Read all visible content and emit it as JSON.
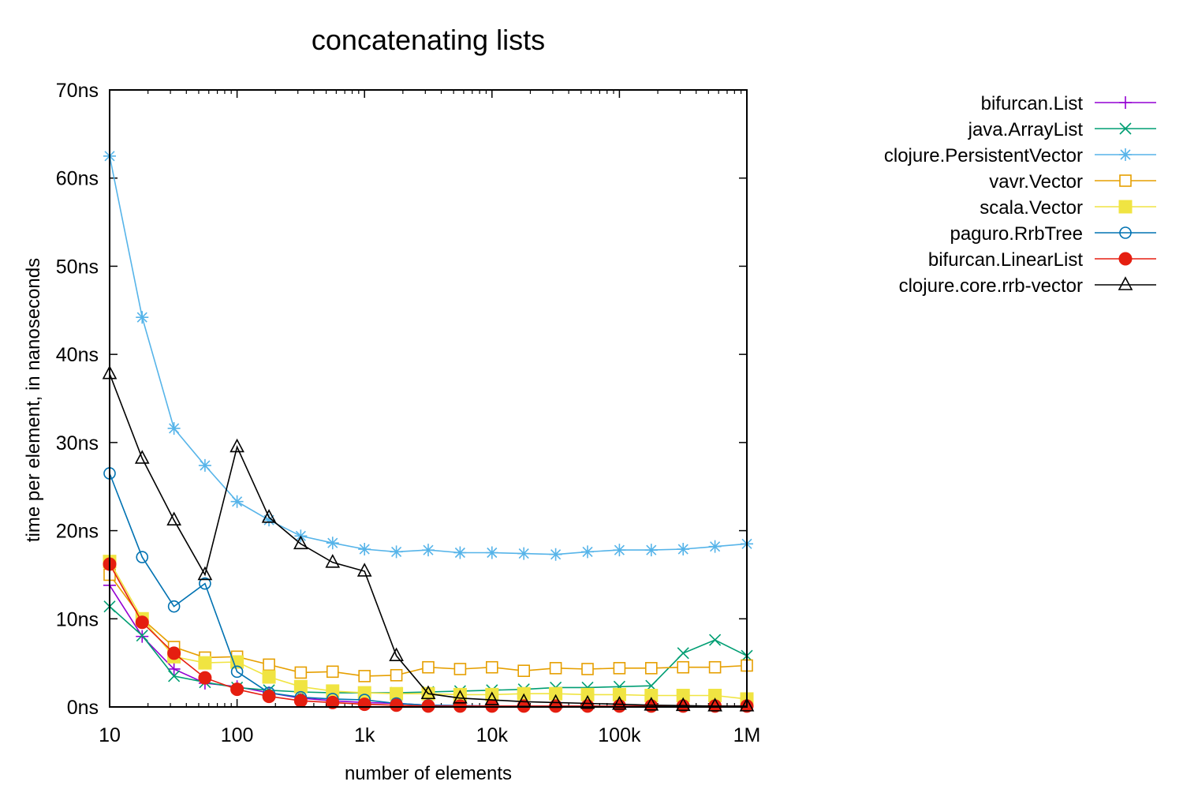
{
  "chart_data": {
    "type": "line",
    "title": "concatenating lists",
    "xlabel": "number of elements",
    "ylabel": "time per element, in nanoseconds",
    "xscale": "log",
    "xlim": [
      10,
      1000000
    ],
    "ylim": [
      0,
      70
    ],
    "grid": false,
    "legend_position": "top-right, outside plot",
    "x_ticks": [
      {
        "value": 10,
        "label": "10"
      },
      {
        "value": 100,
        "label": "100"
      },
      {
        "value": 1000,
        "label": "1k"
      },
      {
        "value": 10000,
        "label": "10k"
      },
      {
        "value": 100000,
        "label": "100k"
      },
      {
        "value": 1000000,
        "label": "1M"
      }
    ],
    "y_ticks": [
      {
        "value": 0,
        "label": "0ns"
      },
      {
        "value": 10,
        "label": "10ns"
      },
      {
        "value": 20,
        "label": "20ns"
      },
      {
        "value": 30,
        "label": "30ns"
      },
      {
        "value": 40,
        "label": "40ns"
      },
      {
        "value": 50,
        "label": "50ns"
      },
      {
        "value": 60,
        "label": "60ns"
      },
      {
        "value": 70,
        "label": "70ns"
      }
    ],
    "x": [
      10,
      18,
      32,
      56,
      100,
      178,
      316,
      562,
      1000,
      1778,
      3162,
      5623,
      10000,
      17783,
      31623,
      56234,
      100000,
      177828,
      316228,
      562341,
      1000000
    ],
    "series": [
      {
        "name": "bifurcan.List",
        "color": "#9400d3",
        "marker": "plus",
        "values": [
          13.8,
          8.0,
          4.3,
          2.7,
          2.3,
          1.6,
          1.0,
          0.7,
          0.5,
          0.4,
          0.2,
          0.15,
          0.1,
          0.1,
          0.1,
          0.1,
          0.1,
          0.1,
          0.1,
          0.1,
          0.1
        ]
      },
      {
        "name": "java.ArrayList",
        "color": "#009e73",
        "marker": "x",
        "values": [
          11.4,
          8.1,
          3.5,
          2.8,
          2.2,
          1.9,
          1.7,
          1.6,
          1.6,
          1.6,
          1.7,
          1.8,
          1.9,
          2.0,
          2.2,
          2.2,
          2.3,
          2.4,
          6.1,
          7.6,
          5.8
        ]
      },
      {
        "name": "clojure.PersistentVector",
        "color": "#56b4e9",
        "marker": "star",
        "values": [
          62.5,
          44.2,
          31.6,
          27.4,
          23.3,
          21.2,
          19.4,
          18.6,
          17.9,
          17.6,
          17.8,
          17.5,
          17.5,
          17.4,
          17.3,
          17.6,
          17.8,
          17.8,
          17.9,
          18.2,
          18.5
        ]
      },
      {
        "name": "vavr.Vector",
        "color": "#e69f00",
        "marker": "open-square",
        "values": [
          15.0,
          10.0,
          6.8,
          5.6,
          5.7,
          4.8,
          3.9,
          4.0,
          3.5,
          3.6,
          4.5,
          4.3,
          4.5,
          4.1,
          4.4,
          4.3,
          4.4,
          4.4,
          4.5,
          4.5,
          4.7
        ]
      },
      {
        "name": "scala.Vector",
        "color": "#f0e442",
        "marker": "filled-square",
        "values": [
          16.5,
          10.0,
          5.7,
          5.0,
          5.1,
          3.4,
          2.3,
          1.8,
          1.6,
          1.5,
          1.5,
          1.4,
          1.4,
          1.5,
          1.5,
          1.4,
          1.4,
          1.3,
          1.3,
          1.3,
          0.9
        ]
      },
      {
        "name": "paguro.RrbTree",
        "color": "#0072b2",
        "marker": "open-circle",
        "values": [
          26.5,
          17.0,
          11.4,
          14.0,
          4.0,
          1.6,
          1.1,
          0.9,
          0.8,
          0.4,
          0.2,
          0.15,
          0.1,
          0.1,
          0.1,
          0.1,
          0.1,
          0.1,
          0.1,
          0.1,
          0.1
        ]
      },
      {
        "name": "bifurcan.LinearList",
        "color": "#e51e10",
        "marker": "filled-circle",
        "values": [
          16.2,
          9.6,
          6.1,
          3.3,
          2.0,
          1.2,
          0.7,
          0.5,
          0.3,
          0.2,
          0.1,
          0.1,
          0.1,
          0.1,
          0.1,
          0.1,
          0.1,
          0.1,
          0.1,
          0.1,
          0.1
        ]
      },
      {
        "name": "clojure.core.rrb-vector",
        "color": "#000000",
        "marker": "open-triangle",
        "values": [
          37.8,
          28.2,
          21.2,
          15.0,
          29.5,
          21.5,
          18.5,
          16.4,
          15.4,
          5.8,
          1.5,
          1.0,
          0.8,
          0.6,
          0.5,
          0.4,
          0.3,
          0.2,
          0.15,
          0.1,
          0.1
        ]
      }
    ]
  }
}
